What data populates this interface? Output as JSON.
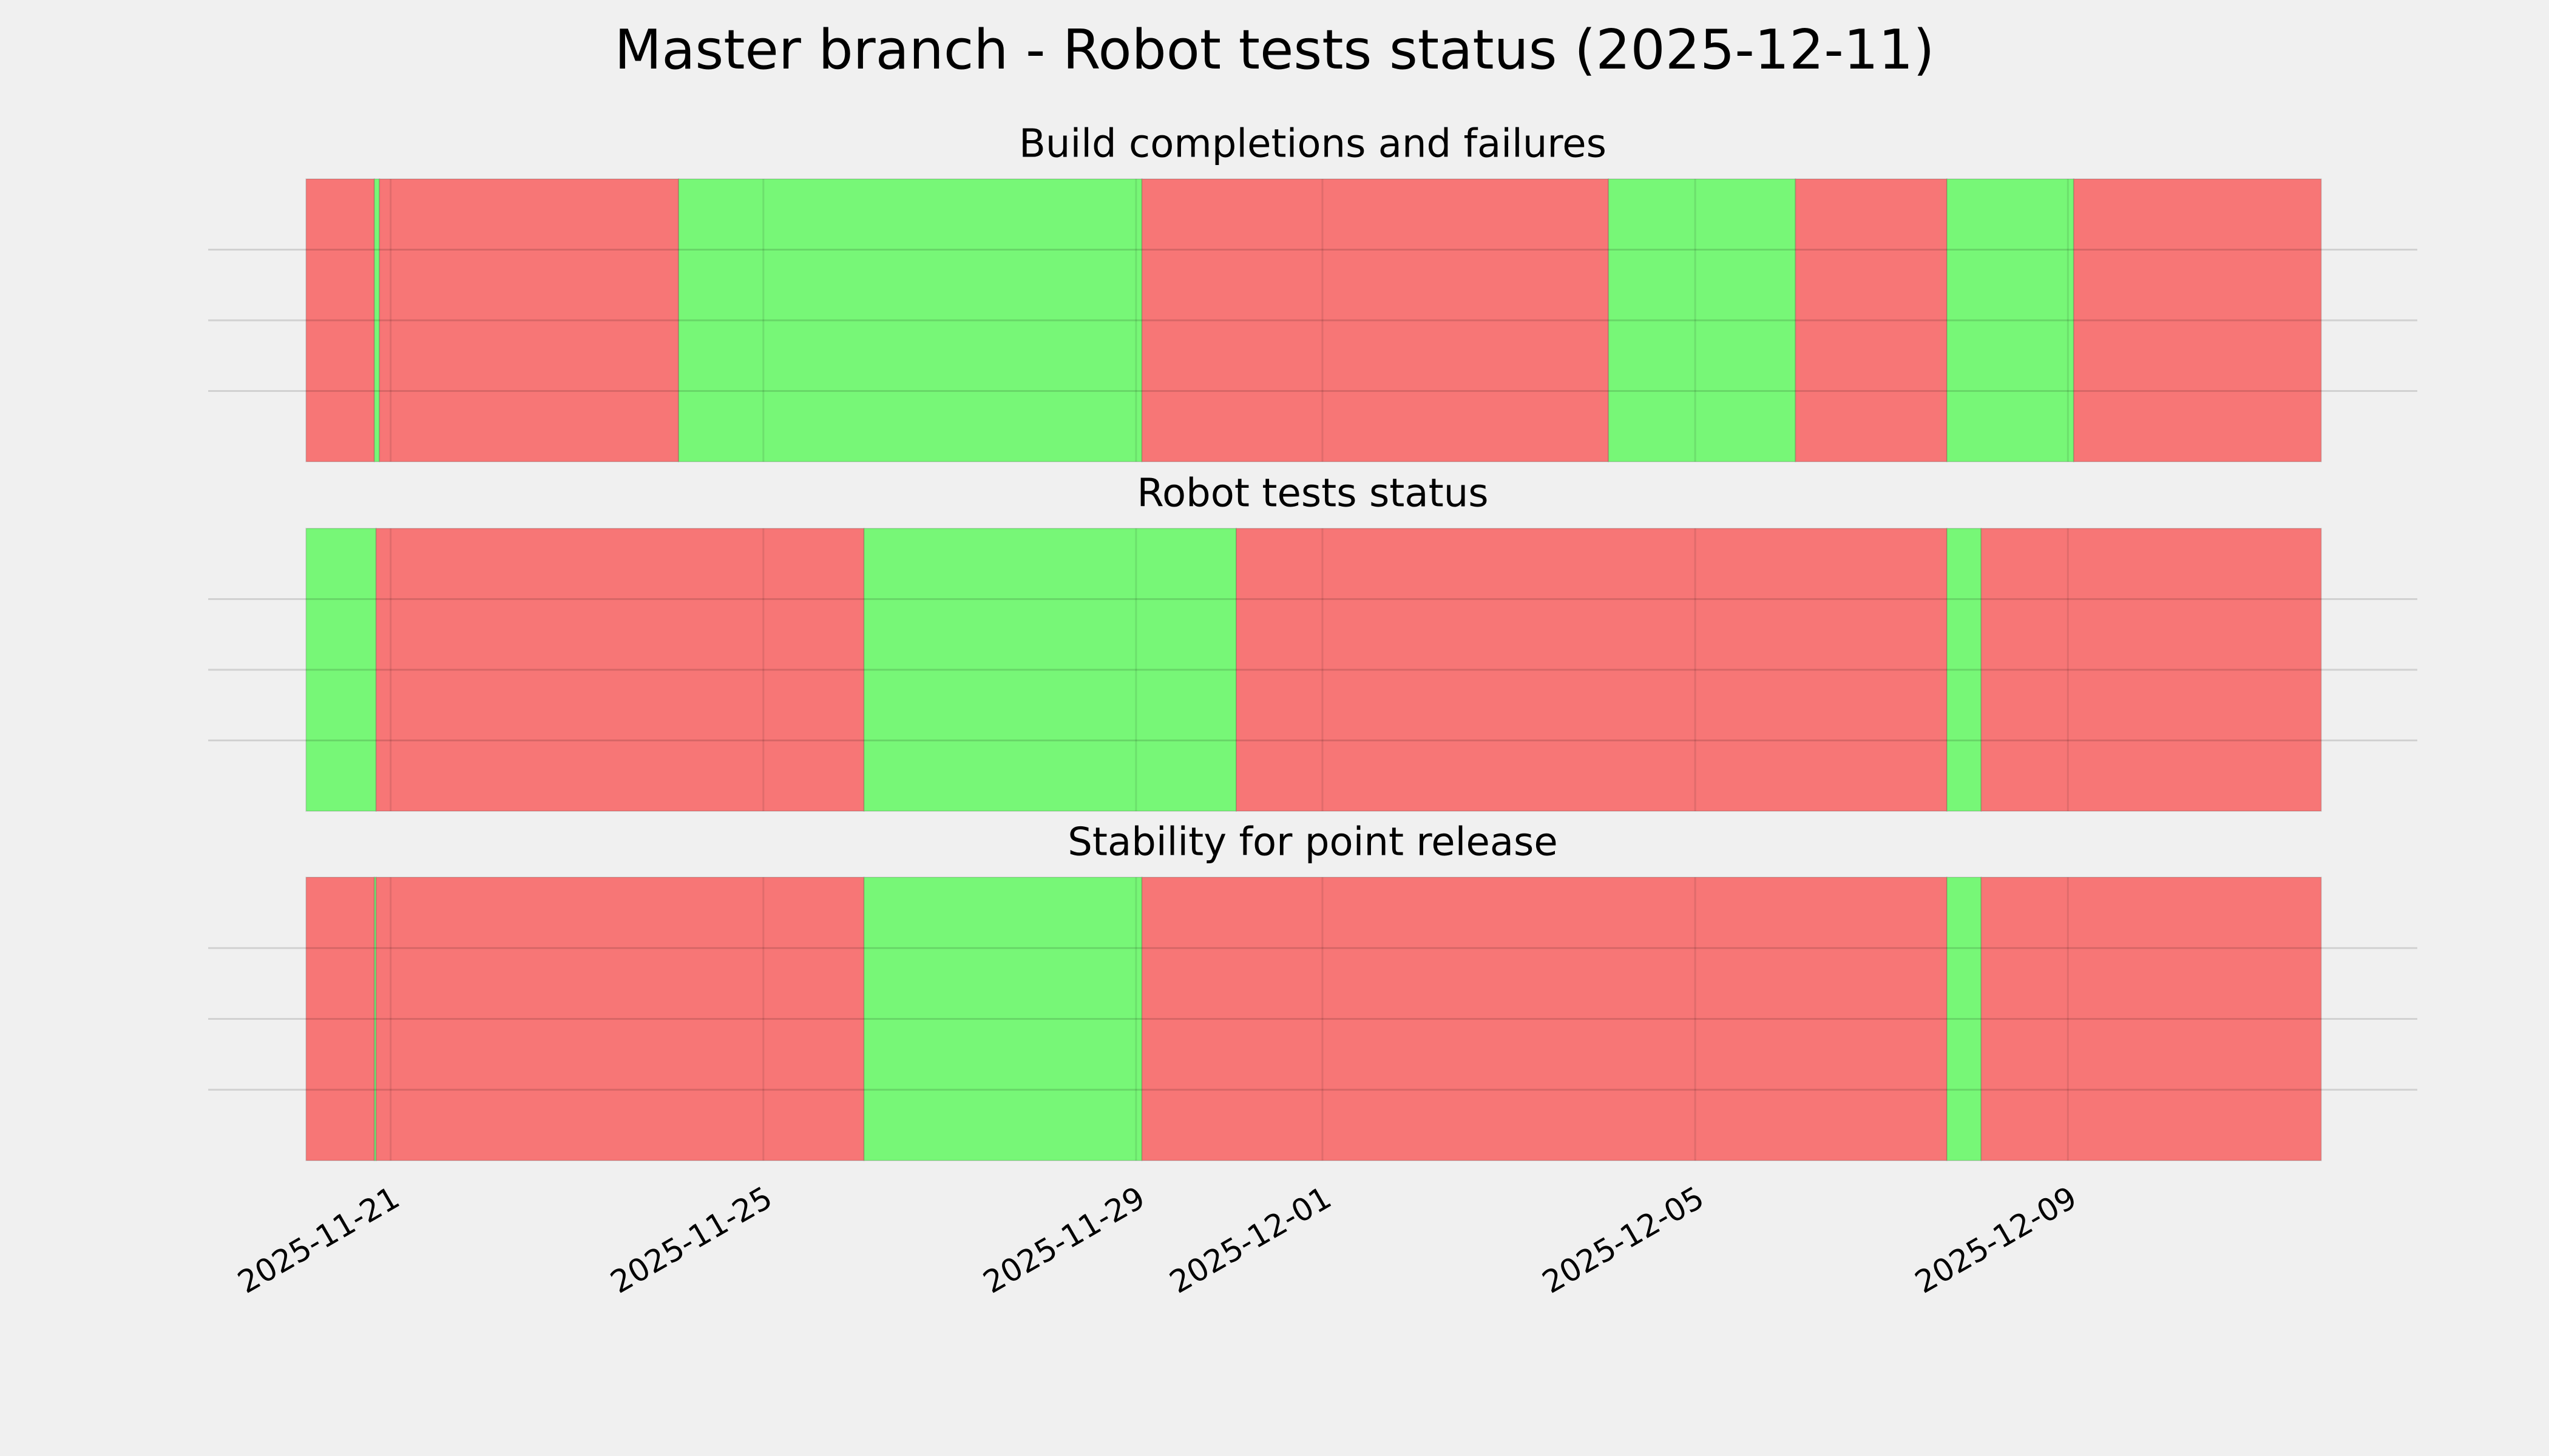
{
  "title": "Master branch - Robot tests status (2025-12-11)",
  "chart_data": [
    {
      "type": "span",
      "title": "Build completions and failures",
      "xlim": [
        "2025-11-19T01:00",
        "2025-12-12T18:00"
      ],
      "xticks": [
        "2025-11-21",
        "2025-11-25",
        "2025-11-29",
        "2025-12-01",
        "2025-12-05",
        "2025-12-09"
      ],
      "ylim": [
        0,
        1
      ],
      "yticks": [
        0.25,
        0.5,
        0.75
      ],
      "grid": true,
      "spans": [
        {
          "start": "2025-11-20T02:13",
          "end": "2025-11-20T19:48",
          "color": "#f77676"
        },
        {
          "start": "2025-11-20T19:48",
          "end": "2025-11-20T21:07",
          "color": "#77f777"
        },
        {
          "start": "2025-11-20T21:07",
          "end": "2025-11-24T02:10",
          "color": "#f77676"
        },
        {
          "start": "2025-11-24T02:10",
          "end": "2025-11-29T01:30",
          "color": "#77f777"
        },
        {
          "start": "2025-11-29T01:30",
          "end": "2025-12-04T01:40",
          "color": "#f77676"
        },
        {
          "start": "2025-12-04T01:40",
          "end": "2025-12-06T01:50",
          "color": "#77f777"
        },
        {
          "start": "2025-12-06T01:50",
          "end": "2025-12-07T16:50",
          "color": "#f77676"
        },
        {
          "start": "2025-12-07T16:50",
          "end": "2025-12-09T01:30",
          "color": "#77f777"
        },
        {
          "start": "2025-12-09T01:30",
          "end": "2025-12-11T17:15",
          "color": "#f77676"
        }
      ]
    },
    {
      "type": "span",
      "title": "Robot tests status",
      "xlim": [
        "2025-11-19T01:00",
        "2025-12-12T18:00"
      ],
      "xticks": [
        "2025-11-21",
        "2025-11-25",
        "2025-11-29",
        "2025-12-01",
        "2025-12-05",
        "2025-12-09"
      ],
      "ylim": [
        0,
        1
      ],
      "yticks": [
        0.25,
        0.5,
        0.75
      ],
      "grid": true,
      "spans": [
        {
          "start": "2025-11-20T02:13",
          "end": "2025-11-20T20:15",
          "color": "#77f777"
        },
        {
          "start": "2025-11-20T20:15",
          "end": "2025-11-26T01:55",
          "color": "#f77676"
        },
        {
          "start": "2025-11-26T01:55",
          "end": "2025-11-30T01:48",
          "color": "#77f777"
        },
        {
          "start": "2025-11-30T01:48",
          "end": "2025-12-07T16:50",
          "color": "#f77676"
        },
        {
          "start": "2025-12-07T16:50",
          "end": "2025-12-08T01:40",
          "color": "#77f777"
        },
        {
          "start": "2025-12-08T01:40",
          "end": "2025-12-11T17:15",
          "color": "#f77676"
        }
      ]
    },
    {
      "type": "span",
      "title": "Stability for point release",
      "xlim": [
        "2025-11-19T01:00",
        "2025-12-12T18:00"
      ],
      "xticks": [
        "2025-11-21",
        "2025-11-25",
        "2025-11-29",
        "2025-12-01",
        "2025-12-05",
        "2025-12-09"
      ],
      "ylim": [
        0,
        1
      ],
      "yticks": [
        0.25,
        0.5,
        0.75
      ],
      "grid": true,
      "spans": [
        {
          "start": "2025-11-20T02:13",
          "end": "2025-11-20T19:48",
          "color": "#f77676"
        },
        {
          "start": "2025-11-20T19:48",
          "end": "2025-11-20T20:15",
          "color": "#77f777"
        },
        {
          "start": "2025-11-20T20:15",
          "end": "2025-11-26T01:55",
          "color": "#f77676"
        },
        {
          "start": "2025-11-26T01:55",
          "end": "2025-11-29T01:30",
          "color": "#77f777"
        },
        {
          "start": "2025-11-29T01:30",
          "end": "2025-12-07T16:50",
          "color": "#f77676"
        },
        {
          "start": "2025-12-07T16:50",
          "end": "2025-12-08T01:40",
          "color": "#77f777"
        },
        {
          "start": "2025-12-08T01:40",
          "end": "2025-12-11T17:15",
          "color": "#f77676"
        }
      ]
    }
  ]
}
